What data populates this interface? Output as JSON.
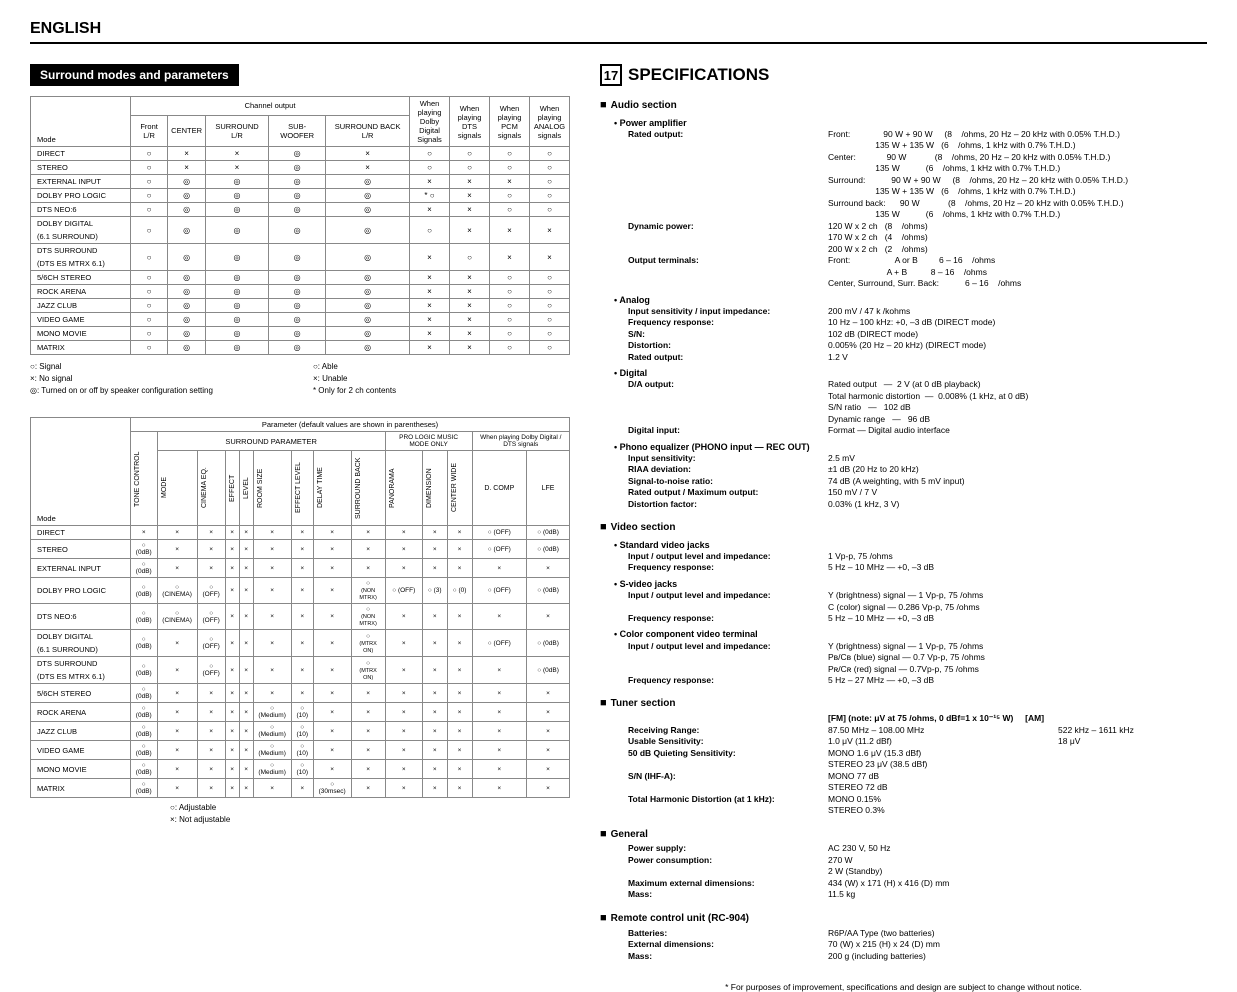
{
  "header": "ENGLISH",
  "left_section_title": "Surround modes and parameters",
  "spec_number": "17",
  "spec_title": "SPECIFICATIONS",
  "table1": {
    "group_channel": "Channel output",
    "headers_row1": [
      "When playing Dolby Digital Signals",
      "When playing DTS signals",
      "When playing PCM signals",
      "When playing ANALOG signals"
    ],
    "cols_channel": [
      "Front L/R",
      "CENTER",
      "SURROUND L/R",
      "SUB-WOOFER",
      "SURROUND BACK L/R"
    ],
    "mode_label": "Mode",
    "rows": [
      {
        "mode": "DIRECT",
        "c": [
          "○",
          "×",
          "×",
          "◎",
          "×",
          "○",
          "○",
          "○",
          "○"
        ]
      },
      {
        "mode": "STEREO",
        "c": [
          "○",
          "×",
          "×",
          "◎",
          "×",
          "○",
          "○",
          "○",
          "○"
        ]
      },
      {
        "mode": "EXTERNAL INPUT",
        "c": [
          "○",
          "◎",
          "◎",
          "◎",
          "◎",
          "×",
          "×",
          "×",
          "○"
        ]
      },
      {
        "mode": "DOLBY PRO LOGIC",
        "c": [
          "○",
          "◎",
          "◎",
          "◎",
          "◎",
          "* ○",
          "×",
          "○",
          "○"
        ]
      },
      {
        "mode": "DTS NEO:6",
        "c": [
          "○",
          "◎",
          "◎",
          "◎",
          "◎",
          "×",
          "×",
          "○",
          "○"
        ]
      },
      {
        "mode": "DOLBY DIGITAL\n(6.1 SURROUND)",
        "c": [
          "○",
          "◎",
          "◎",
          "◎",
          "◎",
          "○",
          "×",
          "×",
          "×"
        ]
      },
      {
        "mode": "DTS SURROUND\n(DTS ES MTRX 6.1)",
        "c": [
          "○",
          "◎",
          "◎",
          "◎",
          "◎",
          "×",
          "○",
          "×",
          "×"
        ]
      },
      {
        "mode": "5/6CH STEREO",
        "c": [
          "○",
          "◎",
          "◎",
          "◎",
          "◎",
          "×",
          "×",
          "○",
          "○"
        ]
      },
      {
        "mode": "ROCK ARENA",
        "c": [
          "○",
          "◎",
          "◎",
          "◎",
          "◎",
          "×",
          "×",
          "○",
          "○"
        ]
      },
      {
        "mode": "JAZZ CLUB",
        "c": [
          "○",
          "◎",
          "◎",
          "◎",
          "◎",
          "×",
          "×",
          "○",
          "○"
        ]
      },
      {
        "mode": "VIDEO GAME",
        "c": [
          "○",
          "◎",
          "◎",
          "◎",
          "◎",
          "×",
          "×",
          "○",
          "○"
        ]
      },
      {
        "mode": "MONO MOVIE",
        "c": [
          "○",
          "◎",
          "◎",
          "◎",
          "◎",
          "×",
          "×",
          "○",
          "○"
        ]
      },
      {
        "mode": "MATRIX",
        "c": [
          "○",
          "◎",
          "◎",
          "◎",
          "◎",
          "×",
          "×",
          "○",
          "○"
        ]
      }
    ],
    "legend_left": [
      "○:  Signal",
      "×:  No signal",
      "◎:  Turned on or off by speaker configuration setting"
    ],
    "legend_right": [
      "○:  Able",
      "×:  Unable",
      "*  Only for 2 ch contents"
    ]
  },
  "table2": {
    "top_caption": "Parameter (default values are shown in parentheses)",
    "group_surround": "SURROUND PARAMETER",
    "group_prologic": "PRO LOGIC    MUSIC MODE ONLY",
    "group_dolby": "When playing Dolby Digital / DTS signals",
    "col_headers": [
      "TONE CONTROL",
      "MODE",
      "CINEMA EQ.",
      "EFFECT",
      "LEVEL",
      "ROOM SIZE",
      "EFFECT LEVEL",
      "DELAY TIME",
      "SURROUND BACK",
      "PANORAMA",
      "DIMENSION",
      "CENTER WIDE",
      "D. COMP",
      "LFE"
    ],
    "mode_label": "Mode",
    "rows": [
      {
        "mode": "DIRECT",
        "c": [
          "×",
          "×",
          "×",
          "×",
          "×",
          "×",
          "×",
          "×",
          "×",
          "×",
          "×",
          "×",
          "○ (OFF)",
          "○ (0dB)"
        ]
      },
      {
        "mode": "STEREO",
        "c": [
          "○ (0dB)",
          "×",
          "×",
          "×",
          "×",
          "×",
          "×",
          "×",
          "×",
          "×",
          "×",
          "×",
          "○ (OFF)",
          "○ (0dB)"
        ]
      },
      {
        "mode": "EXTERNAL INPUT",
        "c": [
          "○ (0dB)",
          "×",
          "×",
          "×",
          "×",
          "×",
          "×",
          "×",
          "×",
          "×",
          "×",
          "×",
          "×",
          "×"
        ]
      },
      {
        "mode": "DOLBY PRO LOGIC",
        "c": [
          "○ (0dB)",
          "○ (CINEMA)",
          "○ (OFF)",
          "×",
          "×",
          "×",
          "×",
          "×",
          "○\n(NON MTRX)",
          "○ (OFF)",
          "○ (3)",
          "○ (0)",
          "○ (OFF)",
          "○ (0dB)"
        ]
      },
      {
        "mode": "DTS NEO:6",
        "c": [
          "○ (0dB)",
          "○ (CINEMA)",
          "○ (OFF)",
          "×",
          "×",
          "×",
          "×",
          "×",
          "○\n(NON MTRX)",
          "×",
          "×",
          "×",
          "×",
          "×"
        ]
      },
      {
        "mode": "DOLBY DIGITAL\n(6.1 SURROUND)",
        "c": [
          "○ (0dB)",
          "×",
          "○ (OFF)",
          "×",
          "×",
          "×",
          "×",
          "×",
          "○\n(MTRX ON)",
          "×",
          "×",
          "×",
          "○ (OFF)",
          "○ (0dB)"
        ]
      },
      {
        "mode": "DTS SURROUND\n(DTS ES MTRX 6.1)",
        "c": [
          "○ (0dB)",
          "×",
          "○ (OFF)",
          "×",
          "×",
          "×",
          "×",
          "×",
          "○\n(MTRX ON)",
          "×",
          "×",
          "×",
          "×",
          "○ (0dB)"
        ]
      },
      {
        "mode": "5/6CH STEREO",
        "c": [
          "○ (0dB)",
          "×",
          "×",
          "×",
          "×",
          "×",
          "×",
          "×",
          "×",
          "×",
          "×",
          "×",
          "×",
          "×"
        ]
      },
      {
        "mode": "ROCK ARENA",
        "c": [
          "○ (0dB)",
          "×",
          "×",
          "×",
          "×",
          "○ (Medium)",
          "○ (10)",
          "×",
          "×",
          "×",
          "×",
          "×",
          "×",
          "×"
        ]
      },
      {
        "mode": "JAZZ CLUB",
        "c": [
          "○ (0dB)",
          "×",
          "×",
          "×",
          "×",
          "○ (Medium)",
          "○ (10)",
          "×",
          "×",
          "×",
          "×",
          "×",
          "×",
          "×"
        ]
      },
      {
        "mode": "VIDEO GAME",
        "c": [
          "○ (0dB)",
          "×",
          "×",
          "×",
          "×",
          "○ (Medium)",
          "○ (10)",
          "×",
          "×",
          "×",
          "×",
          "×",
          "×",
          "×"
        ]
      },
      {
        "mode": "MONO MOVIE",
        "c": [
          "○ (0dB)",
          "×",
          "×",
          "×",
          "×",
          "○ (Medium)",
          "○ (10)",
          "×",
          "×",
          "×",
          "×",
          "×",
          "×",
          "×"
        ]
      },
      {
        "mode": "MATRIX",
        "c": [
          "○ (0dB)",
          "×",
          "×",
          "×",
          "×",
          "×",
          "×",
          "○ (30msec)",
          "×",
          "×",
          "×",
          "×",
          "×",
          "×"
        ]
      }
    ],
    "legend": [
      "○:  Adjustable",
      "×:  Not adjustable"
    ]
  },
  "specs": {
    "audio_title": "Audio section",
    "power_amp": "Power amplifier",
    "rated_output_label": "Rated output:",
    "rated_output_lines": [
      "Front:              90 W + 90 W     (8    /ohms, 20 Hz – 20 kHz with 0.05% T.H.D.)",
      "                    135 W + 135 W   (6    /ohms, 1 kHz with 0.7% T.H.D.)",
      "Center:             90 W            (8    /ohms, 20 Hz – 20 kHz with 0.05% T.H.D.)",
      "                    135 W           (6    /ohms, 1 kHz with 0.7% T.H.D.)",
      "Surround:           90 W + 90 W     (8    /ohms, 20 Hz – 20 kHz with 0.05% T.H.D.)",
      "                    135 W + 135 W   (6    /ohms, 1 kHz with 0.7% T.H.D.)",
      "Surround back:      90 W            (8    /ohms, 20 Hz – 20 kHz with 0.05% T.H.D.)",
      "                    135 W           (6    /ohms, 1 kHz with 0.7% T.H.D.)"
    ],
    "dynamic_power_label": "Dynamic power:",
    "dynamic_power_lines": [
      "120 W x 2 ch   (8    /ohms)",
      "170 W x 2 ch   (4    /ohms)",
      "200 W x 2 ch   (2    /ohms)"
    ],
    "output_terminals_label": "Output terminals:",
    "output_terminals_lines": [
      "Front:                   A or B         6 – 16    /ohms",
      "                         A + B          8 – 16    /ohms",
      "Center, Surround, Surr. Back:           6 – 16    /ohms"
    ],
    "analog_title": "Analog",
    "analog_rows": [
      {
        "l": "Input sensitivity / input impedance:",
        "v": "200 mV  /  47 k   /kohms"
      },
      {
        "l": "Frequency response:",
        "v": "10 Hz – 100 kHz: +0, –3 dB (DIRECT mode)"
      },
      {
        "l": "S/N:",
        "v": "102 dB (DIRECT mode)"
      },
      {
        "l": "Distortion:",
        "v": "0.005% (20 Hz – 20 kHz) (DIRECT mode)"
      },
      {
        "l": "Rated output:",
        "v": "1.2 V"
      }
    ],
    "digital_title": "Digital",
    "da_output_label": "D/A output:",
    "da_output_lines": [
      "Rated output   —  2 V (at 0 dB playback)",
      "Total harmonic distortion  —  0.008% (1 kHz, at 0 dB)",
      "S/N ratio   —   102 dB",
      "Dynamic range   —   96 dB"
    ],
    "digital_input_label": "Digital input:",
    "digital_input_value": "Format   —   Digital audio interface",
    "phono_title": "Phono equalizer (PHONO input — REC OUT)",
    "phono_rows": [
      {
        "l": "Input sensitivity:",
        "v": "2.5 mV"
      },
      {
        "l": "RIAA deviation:",
        "v": "±1 dB (20 Hz to 20 kHz)"
      },
      {
        "l": "Signal-to-noise ratio:",
        "v": "74 dB (A weighting, with 5 mV input)"
      },
      {
        "l": "Rated output / Maximum output:",
        "v": "150 mV  /  7 V"
      },
      {
        "l": "Distortion factor:",
        "v": "0.03% (1 kHz, 3 V)"
      }
    ],
    "video_title": "Video section",
    "std_video_title": "Standard video jacks",
    "std_video_rows": [
      {
        "l": "Input / output level and impedance:",
        "v": "1 Vp-p, 75    /ohms"
      },
      {
        "l": "Frequency response:",
        "v": "5 Hz – 10 MHz   —   +0, –3 dB"
      }
    ],
    "svideo_title": "S-video jacks",
    "svideo_rows": [
      {
        "l": "Input / output level and impedance:",
        "v": "Y (brightness) signal   —   1 Vp-p, 75    /ohms"
      },
      {
        "l": "",
        "v": "C (color) signal   —   0.286 Vp-p, 75    /ohms"
      },
      {
        "l": "Frequency response:",
        "v": "5 Hz – 10 MHz   —   +0, –3 dB"
      }
    ],
    "color_comp_title": "Color component video terminal",
    "color_comp_rows": [
      {
        "l": "Input / output level and impedance:",
        "v": "Y (brightness) signal   —   1 Vp-p, 75    /ohms"
      },
      {
        "l": "",
        "v": "Pʙ/Cʙ (blue) signal   —   0.7 Vp-p, 75     /ohms"
      },
      {
        "l": "",
        "v": "Pʀ/Cʀ (red) signal   —   0.7Vp-p, 75     /ohms"
      },
      {
        "l": "Frequency response:",
        "v": "5 Hz – 27 MHz   —   +0, –3 dB"
      }
    ],
    "tuner_title": "Tuner section",
    "tuner_fm_note": "[FM] (note: μV at 75    /ohms, 0 dBf=1 x 10⁻¹⁵ W)",
    "tuner_am_note": "[AM]",
    "tuner_rows": [
      {
        "l": "Receiving Range:",
        "v": "87.50 MHz – 108.00 MHz",
        "v2": "522 kHz – 1611 kHz"
      },
      {
        "l": "Usable Sensitivity:",
        "v": "1.0 μV (11.2 dBf)",
        "v2": "18 μV"
      },
      {
        "l": "50 dB Quieting Sensitivity:",
        "v": "MONO          1.6 μV (15.3 dBf)",
        "v2": ""
      },
      {
        "l": "",
        "v": "STEREO        23 μV (38.5 dBf)",
        "v2": ""
      },
      {
        "l": "S/N (IHF-A):",
        "v": "MONO          77 dB",
        "v2": ""
      },
      {
        "l": "",
        "v": "STEREO        72 dB",
        "v2": ""
      },
      {
        "l": "Total Harmonic Distortion (at 1 kHz):",
        "v": "MONO          0.15%",
        "v2": ""
      },
      {
        "l": "",
        "v": "STEREO        0.3%",
        "v2": ""
      }
    ],
    "general_title": "General",
    "general_rows": [
      {
        "l": "Power supply:",
        "v": "AC 230 V, 50 Hz"
      },
      {
        "l": "Power consumption:",
        "v": "270 W"
      },
      {
        "l": "",
        "v": "2 W (Standby)"
      },
      {
        "l": "Maximum external dimensions:",
        "v": "434 (W) x 171 (H) x 416 (D) mm"
      },
      {
        "l": "Mass:",
        "v": "11.5 kg"
      }
    ],
    "remote_title": "Remote control unit (RC-904)",
    "remote_rows": [
      {
        "l": "Batteries:",
        "v": "R6P/AA Type (two batteries)"
      },
      {
        "l": "External dimensions:",
        "v": "70 (W)  x  215 (H)  x 24 (D) mm"
      },
      {
        "l": "Mass:",
        "v": "200 g (including batteries)"
      }
    ],
    "footnote": "* For purposes of improvement, specifications and design are subject to change without notice."
  }
}
